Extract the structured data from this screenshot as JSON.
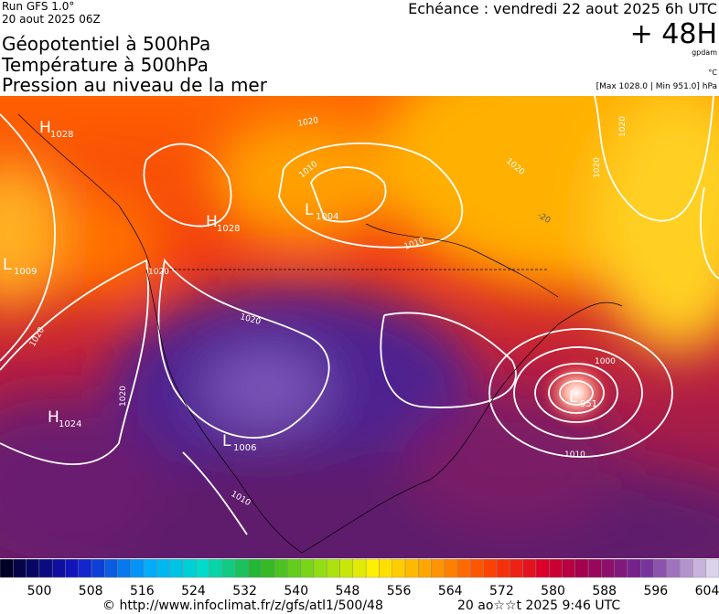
{
  "header": {
    "run": "Run GFS 1.0°",
    "date": "20 aout 2025 06Z",
    "titles": [
      "Géopotentiel à 500hPa",
      "Température à 500hPa",
      "Pression au niveau de la mer"
    ],
    "echeance": "Echéance : vendredi 22 aout 2025 6h UTC",
    "lead": "+ 48H",
    "units": [
      "gpdam",
      "°C"
    ],
    "range": "[Max 1028.0 | Min 951.0] hPa"
  },
  "map": {
    "centers": [
      {
        "letter": "H",
        "value": 1028
      },
      {
        "letter": "H",
        "value": 1028
      },
      {
        "letter": "L",
        "value": 1004
      },
      {
        "letter": "L",
        "value": 1009
      },
      {
        "letter": "H",
        "value": 1024
      },
      {
        "letter": "L",
        "value": 1006
      },
      {
        "letter": "L",
        "value": 951
      }
    ],
    "isobar_labels": [
      1020,
      1010,
      1010,
      1020,
      1020,
      1020,
      1020,
      1020,
      1020,
      1020,
      1010,
      1000,
      1010,
      -20
    ]
  },
  "colorbar": {
    "labels": [
      500,
      508,
      516,
      524,
      532,
      540,
      548,
      556,
      564,
      572,
      580,
      588,
      596,
      604
    ]
  },
  "footer": {
    "url": "© http://www.infoclimat.fr/z/gfs/atl1/500/48",
    "time": "20 ao☆☆t 2025  9:46 UTC"
  }
}
